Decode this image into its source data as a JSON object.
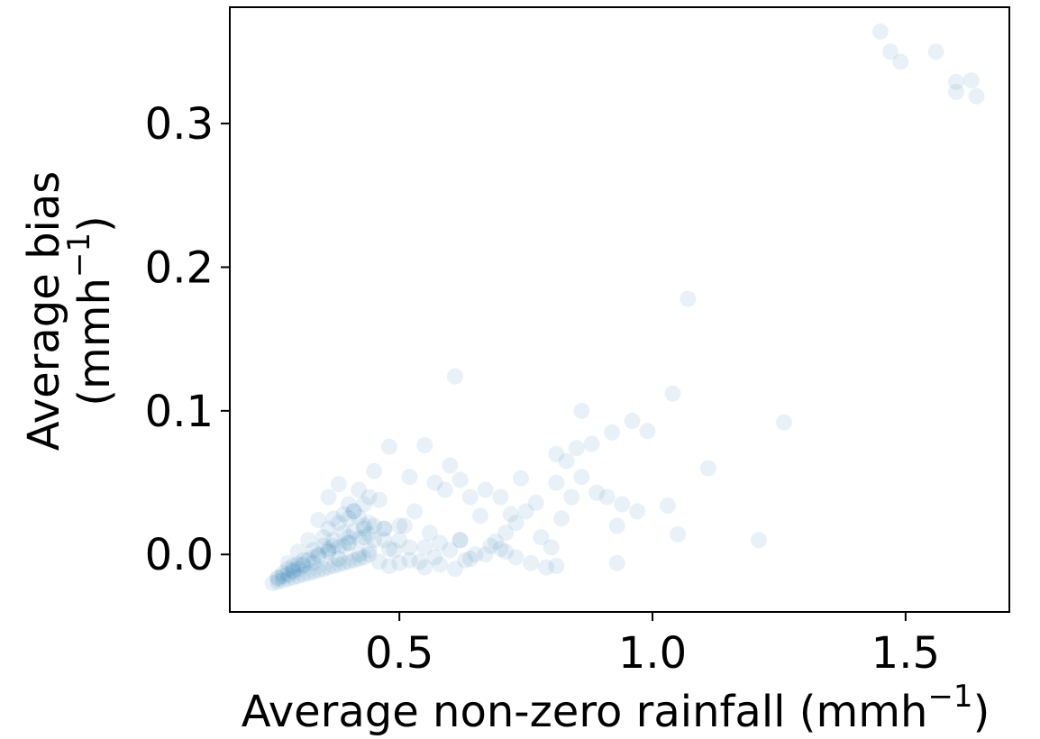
{
  "chart_data": {
    "type": "scatter",
    "title": "",
    "xlabel": "Average non-zero rainfall (mmh",
    "xlabel_sup": "−1",
    "xlabel_tail": ")",
    "ylabel_line1": "Average bias",
    "ylabel_line2": "(mmh",
    "ylabel_sup": "−1",
    "ylabel_tail": ")",
    "xlim": [
      0.165,
      1.705
    ],
    "ylim": [
      -0.04,
      0.381
    ],
    "x_ticks": [
      0.5,
      1.0,
      1.5
    ],
    "x_tick_labels": [
      "0.5",
      "1.0",
      "1.5"
    ],
    "y_ticks": [
      0.0,
      0.1,
      0.2,
      0.3
    ],
    "y_tick_labels": [
      "0.0",
      "0.1",
      "0.2",
      "0.3"
    ],
    "grid": false,
    "marker_color": "#1f77b4",
    "marker_alpha": 0.1,
    "series": [
      {
        "x": [
          1.45,
          1.47,
          1.49,
          1.56,
          1.6,
          1.6,
          1.63,
          1.64,
          1.07,
          0.61,
          1.04,
          1.26,
          0.86,
          0.96,
          0.99,
          1.11,
          0.92,
          0.88,
          0.85,
          0.83,
          0.81,
          0.86,
          0.89,
          0.91,
          0.94,
          0.93,
          0.97,
          1.03,
          1.05,
          0.81,
          0.84,
          0.82,
          0.78,
          0.8,
          0.93,
          0.81,
          1.21,
          0.48,
          0.55,
          0.6,
          0.62,
          0.67,
          0.74,
          0.77,
          0.7,
          0.72,
          0.66,
          0.75,
          0.71,
          0.64,
          0.69,
          0.73,
          0.57,
          0.52,
          0.45,
          0.42,
          0.38,
          0.36,
          0.43,
          0.46,
          0.5,
          0.53,
          0.59,
          0.39,
          0.41,
          0.44,
          0.47,
          0.4,
          0.35,
          0.34,
          0.37,
          0.55,
          0.58,
          0.6,
          0.62,
          0.65,
          0.68,
          0.71,
          0.5,
          0.52,
          0.63,
          0.57,
          0.54,
          0.48,
          0.45,
          0.4,
          0.42,
          0.44,
          0.38,
          0.36,
          0.33,
          0.31,
          0.3,
          0.29,
          0.28,
          0.27,
          0.26,
          0.25,
          0.26,
          0.27,
          0.28,
          0.29,
          0.3,
          0.31,
          0.32,
          0.33,
          0.34,
          0.35,
          0.36,
          0.37,
          0.38,
          0.39,
          0.4,
          0.41,
          0.42,
          0.43,
          0.44,
          0.46,
          0.48,
          0.5,
          0.52,
          0.55,
          0.58,
          0.61,
          0.64,
          0.67,
          0.7,
          0.73,
          0.76,
          0.79,
          0.62,
          0.56,
          0.51,
          0.47,
          0.43,
          0.39,
          0.36,
          0.33,
          0.31,
          0.29,
          0.27,
          0.28,
          0.3,
          0.32,
          0.34,
          0.36,
          0.38,
          0.4,
          0.42,
          0.44,
          0.41,
          0.37,
          0.35,
          0.33,
          0.39,
          0.43,
          0.41,
          0.4,
          0.38,
          0.42,
          0.44,
          0.36,
          0.32,
          0.3,
          0.28,
          0.26,
          0.29,
          0.31,
          0.34,
          0.37,
          0.4,
          0.43,
          0.45,
          0.47,
          0.49
        ],
        "y": [
          0.364,
          0.35,
          0.343,
          0.35,
          0.329,
          0.322,
          0.33,
          0.319,
          0.178,
          0.124,
          0.112,
          0.092,
          0.1,
          0.093,
          0.086,
          0.06,
          0.085,
          0.077,
          0.074,
          0.065,
          0.07,
          0.054,
          0.043,
          0.04,
          0.035,
          0.02,
          0.03,
          0.034,
          0.014,
          0.05,
          0.04,
          0.025,
          0.012,
          0.005,
          -0.006,
          -0.008,
          0.01,
          0.075,
          0.076,
          0.062,
          0.052,
          0.045,
          0.053,
          0.036,
          0.04,
          0.028,
          0.027,
          0.03,
          0.015,
          0.04,
          0.009,
          0.022,
          0.05,
          0.054,
          0.058,
          0.045,
          0.049,
          0.04,
          0.035,
          0.038,
          0.02,
          0.03,
          0.045,
          0.028,
          0.03,
          0.022,
          0.018,
          0.025,
          0.012,
          0.024,
          0.025,
          0.005,
          0.008,
          0.003,
          0.01,
          0.0,
          0.006,
          0.002,
          0.01,
          0.005,
          -0.004,
          -0.002,
          -0.005,
          0.004,
          0.01,
          0.008,
          0.0,
          0.003,
          -0.003,
          0.004,
          -0.006,
          -0.008,
          -0.01,
          -0.012,
          -0.014,
          -0.015,
          -0.017,
          -0.02,
          -0.019,
          -0.018,
          -0.017,
          -0.016,
          -0.015,
          -0.014,
          -0.013,
          -0.012,
          -0.011,
          -0.01,
          -0.009,
          -0.008,
          -0.007,
          -0.006,
          -0.005,
          -0.004,
          -0.003,
          -0.002,
          0.0,
          -0.005,
          -0.008,
          -0.006,
          -0.004,
          -0.009,
          -0.007,
          -0.01,
          -0.003,
          0.0,
          0.004,
          -0.002,
          -0.006,
          -0.009,
          0.01,
          0.015,
          0.02,
          0.018,
          0.012,
          0.006,
          0.002,
          -0.002,
          -0.004,
          -0.008,
          -0.013,
          -0.01,
          -0.007,
          -0.004,
          -0.001,
          0.002,
          0.005,
          0.008,
          0.011,
          0.014,
          0.016,
          0.01,
          0.006,
          0.003,
          0.015,
          0.02,
          0.03,
          0.035,
          0.022,
          0.026,
          0.04,
          0.018,
          0.01,
          0.002,
          -0.006,
          -0.016,
          -0.011,
          -0.007,
          0.0,
          0.006,
          0.012,
          0.018,
          0.02,
          0.01,
          0.003
        ]
      }
    ]
  }
}
